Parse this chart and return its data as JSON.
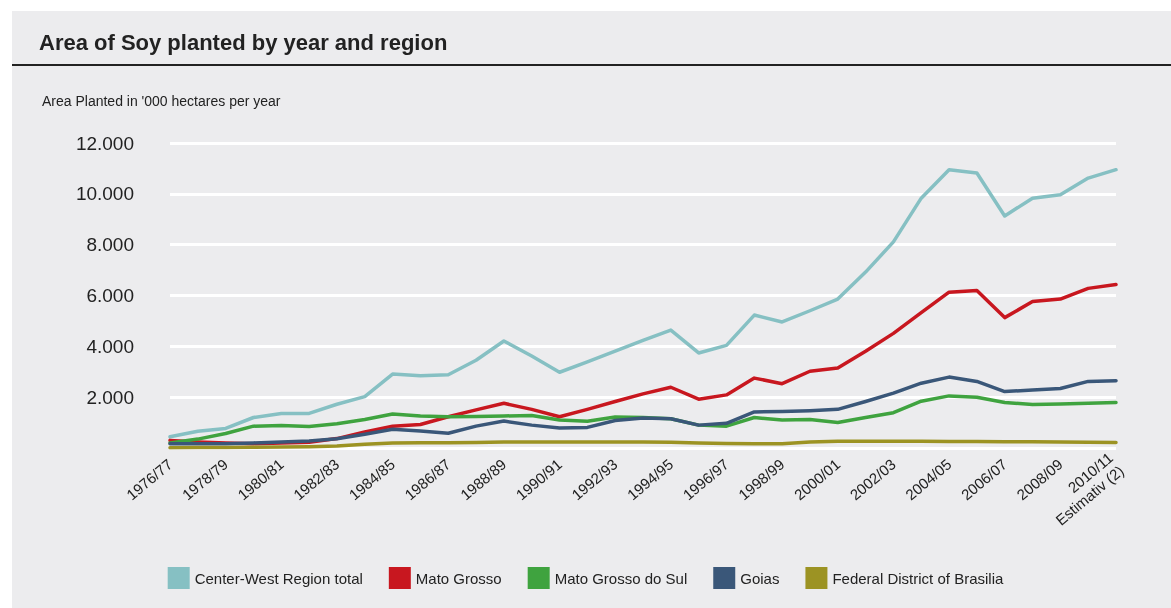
{
  "chart_data": {
    "type": "line",
    "title": "Area of Soy planted by year and region",
    "ylabel": "Area Planted in '000 hectares per year",
    "categories": [
      "1976/77",
      null,
      "1978/79",
      null,
      "1980/81",
      null,
      "1982/83",
      null,
      "1984/85",
      null,
      "1986/87",
      null,
      "1988/89",
      null,
      "1990/91",
      null,
      "1992/93",
      null,
      "1994/95",
      null,
      "1996/97",
      null,
      "1998/99",
      null,
      "2000/01",
      null,
      "2002/03",
      null,
      "2004/05",
      null,
      "2006/07",
      null,
      "2008/09",
      null,
      "2010/11\nEstimativ (2)"
    ],
    "series": [
      {
        "name": "Center-West Region total",
        "color": "#86c0c3",
        "values": [
          440,
          660,
          770,
          1200,
          1360,
          1360,
          1720,
          2020,
          2910,
          2840,
          2880,
          3450,
          4210,
          3620,
          2980,
          3390,
          3810,
          4230,
          4640,
          3740,
          4040,
          5230,
          4960,
          5400,
          5860,
          6920,
          8110,
          9830,
          10950,
          10820,
          9130,
          9830,
          9960,
          10620,
          10950
        ]
      },
      {
        "name": "Mato Grosso",
        "color": "#c8171f",
        "values": [
          300,
          240,
          200,
          170,
          200,
          225,
          370,
          635,
          860,
          926,
          1230,
          1500,
          1760,
          1520,
          1230,
          1520,
          1830,
          2130,
          2390,
          1920,
          2090,
          2750,
          2530,
          3020,
          3150,
          3810,
          4510,
          5330,
          6130,
          6200,
          5130,
          5760,
          5860,
          6280,
          6430
        ]
      },
      {
        "name": "Mato Grosso do Sul",
        "color": "#3fa33f",
        "values": [
          200,
          350,
          570,
          860,
          890,
          850,
          950,
          1120,
          1340,
          1260,
          1230,
          1240,
          1260,
          1280,
          1100,
          1050,
          1220,
          1200,
          1150,
          900,
          860,
          1200,
          1100,
          1120,
          1000,
          1200,
          1390,
          1840,
          2050,
          2000,
          1790,
          1710,
          1730,
          1760,
          1790
        ]
      },
      {
        "name": "Goias",
        "color": "#3a5779",
        "values": [
          170,
          170,
          170,
          200,
          240,
          280,
          360,
          540,
          740,
          670,
          580,
          860,
          1060,
          900,
          790,
          810,
          1080,
          1180,
          1150,
          900,
          970,
          1420,
          1440,
          1470,
          1520,
          1830,
          2160,
          2550,
          2790,
          2620,
          2220,
          2280,
          2340,
          2620,
          2650
        ]
      },
      {
        "name": "Federal District of Brasilia",
        "color": "#9c9323",
        "values": [
          10,
          15,
          20,
          30,
          40,
          50,
          80,
          150,
          200,
          210,
          210,
          220,
          240,
          240,
          240,
          240,
          240,
          240,
          230,
          200,
          180,
          170,
          170,
          240,
          270,
          270,
          270,
          270,
          260,
          260,
          250,
          250,
          240,
          230,
          220
        ]
      }
    ],
    "ylim": [
      0,
      12000
    ],
    "yticks": [
      {
        "value": 0,
        "label": null
      },
      {
        "value": 2000,
        "label": "2.000"
      },
      {
        "value": 4000,
        "label": "4.000"
      },
      {
        "value": 6000,
        "label": "6.000"
      },
      {
        "value": 8000,
        "label": "8.000"
      },
      {
        "value": 10000,
        "label": "10.000"
      },
      {
        "value": 12000,
        "label": "12.000"
      }
    ],
    "grid": "y",
    "legend": "bottom"
  }
}
